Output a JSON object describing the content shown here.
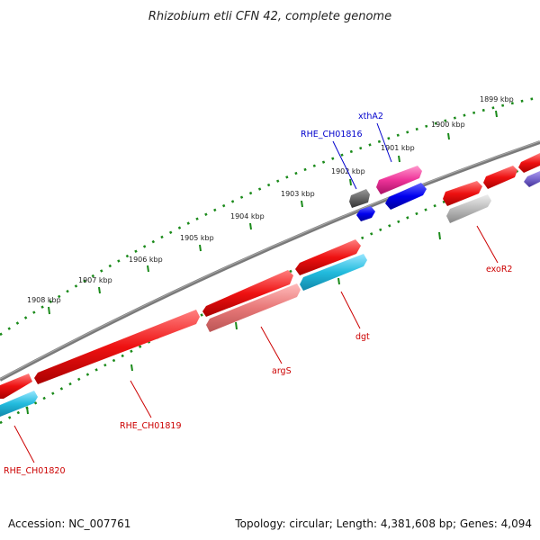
{
  "title": "Rhizobium etli CFN 42, complete genome",
  "accession": "Accession: NC_007761",
  "topology": "Topology: circular; Length: 4,381,608 bp; Genes: 4,094",
  "ruler": {
    "ticks": [
      {
        "label": "1899 kbp"
      },
      {
        "label": "1900 kbp"
      },
      {
        "label": "1901 kbp"
      },
      {
        "label": "1902 kbp"
      },
      {
        "label": "1903 kbp"
      },
      {
        "label": "1904 kbp"
      },
      {
        "label": "1905 kbp"
      },
      {
        "label": "1906 kbp"
      },
      {
        "label": "1907 kbp"
      },
      {
        "label": "1908 kbp"
      }
    ],
    "color": "#1a8a1a"
  },
  "backbone_color": "#7a7a7a",
  "genes": [
    {
      "label": "xthA2",
      "color": "#0000cc"
    },
    {
      "label": "RHE_CH01816",
      "color": "#0000cc"
    },
    {
      "label": "exoR2",
      "color": "#cc0000"
    },
    {
      "label": "dgt",
      "color": "#cc0000"
    },
    {
      "label": "argS",
      "color": "#cc0000"
    },
    {
      "label": "RHE_CH01819",
      "color": "#cc0000"
    },
    {
      "label": "RHE_CH01820",
      "color": "#cc0000"
    }
  ],
  "feature_colors": {
    "cds_forward": "#ee1111",
    "gene_pink": "#ee3399",
    "gene_blue": "#0000ee",
    "gene_cyan": "#22bbdd",
    "gene_salmon": "#e87878",
    "gene_gray_light": "#bbbbbb",
    "gene_gray_dark": "#666666",
    "gene_purple": "#7766cc"
  }
}
